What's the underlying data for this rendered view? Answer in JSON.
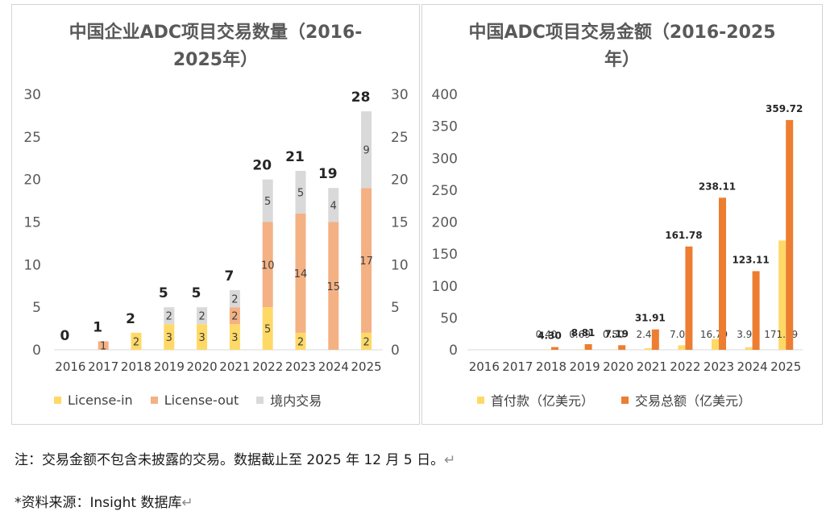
{
  "chart_data": [
    {
      "type": "bar",
      "stacked": true,
      "title_line1": "中国企业ADC项目交易数量（2016-",
      "title_line2": "2025年）",
      "categories": [
        "2016",
        "2017",
        "2018",
        "2019",
        "2020",
        "2021",
        "2022",
        "2023",
        "2024",
        "2025"
      ],
      "ylim": [
        0,
        30
      ],
      "yticks": [
        "0",
        "5",
        "10",
        "15",
        "20",
        "25",
        "30"
      ],
      "series": [
        {
          "name": "License-in",
          "color": "#ffd966",
          "values": [
            0,
            0,
            2,
            3,
            3,
            3,
            5,
            2,
            0,
            2
          ]
        },
        {
          "name": "License-out",
          "color": "#f4b183",
          "values": [
            0,
            1,
            0,
            0,
            0,
            2,
            10,
            14,
            15,
            17
          ]
        },
        {
          "name": "境内交易",
          "color": "#d9d9d9",
          "values": [
            0,
            0,
            0,
            2,
            2,
            2,
            5,
            5,
            4,
            9
          ]
        }
      ],
      "totals": [
        0,
        1,
        2,
        5,
        5,
        7,
        20,
        21,
        19,
        28
      ],
      "legend_position": "bottom",
      "grid": false
    },
    {
      "type": "bar",
      "title_line1": "中国ADC项目交易金额（2016-2025",
      "title_line2": "年）",
      "categories": [
        "2016",
        "2017",
        "2018",
        "2019",
        "2020",
        "2021",
        "2022",
        "2023",
        "2024",
        "2025"
      ],
      "ylim": [
        0,
        400
      ],
      "yticks": [
        "0",
        "50",
        "100",
        "150",
        "200",
        "250",
        "300",
        "350",
        "400"
      ],
      "series": [
        {
          "name": "首付款（亿美元）",
          "color": "#ffd966",
          "values": [
            null,
            null,
            0.4,
            0.69,
            0.5,
            2.44,
            7.06,
            16.79,
            3.98,
            171.09
          ],
          "labels": [
            "",
            "",
            "0.40",
            "0.69",
            "0.50",
            "2.44",
            "7.06",
            "16.79",
            "3.98",
            "171.09"
          ]
        },
        {
          "name": "交易总额（亿美元）",
          "color": "#ed7d31",
          "values": [
            null,
            null,
            4.3,
            8.81,
            7.19,
            31.91,
            161.78,
            238.11,
            123.11,
            359.72
          ],
          "labels": [
            "",
            "",
            "4.30",
            "8.81",
            "7.19",
            "31.91",
            "161.78",
            "238.11",
            "123.11",
            "359.72"
          ]
        }
      ],
      "legend_position": "bottom",
      "grid": false
    }
  ],
  "notes": {
    "note": "注：交易金额不包含未披露的交易。数据截止至 2025 年 12 月 5 日。",
    "source": "*资料来源：Insight  数据库",
    "return_mark": "↵"
  }
}
